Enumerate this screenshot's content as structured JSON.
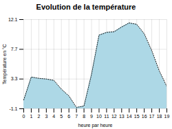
{
  "chart_data": {
    "type": "area",
    "title": "Evolution de la température",
    "xlabel": "heure par heure",
    "ylabel": "Température en °C",
    "x": [
      0,
      1,
      2,
      3,
      4,
      5,
      6,
      7,
      8,
      9,
      10,
      11,
      12,
      13,
      14,
      15,
      16,
      17,
      18,
      19
    ],
    "values": [
      0.2,
      3.6,
      3.4,
      3.3,
      3.1,
      1.8,
      0.8,
      -0.9,
      -0.7,
      4.0,
      9.8,
      10.2,
      10.3,
      11.0,
      11.6,
      11.4,
      10.0,
      7.5,
      4.5,
      2.2
    ],
    "xlim": [
      0,
      19
    ],
    "xticks": [
      0,
      1,
      2,
      3,
      4,
      5,
      6,
      7,
      8,
      9,
      10,
      11,
      12,
      13,
      14,
      15,
      16,
      17,
      18,
      19
    ],
    "ylim": [
      -1.1,
      12.1
    ],
    "yticks": [
      -1.1,
      3.3,
      7.7,
      12.1
    ],
    "color": "#add8e6",
    "line_style": "dotted",
    "grid": true
  }
}
